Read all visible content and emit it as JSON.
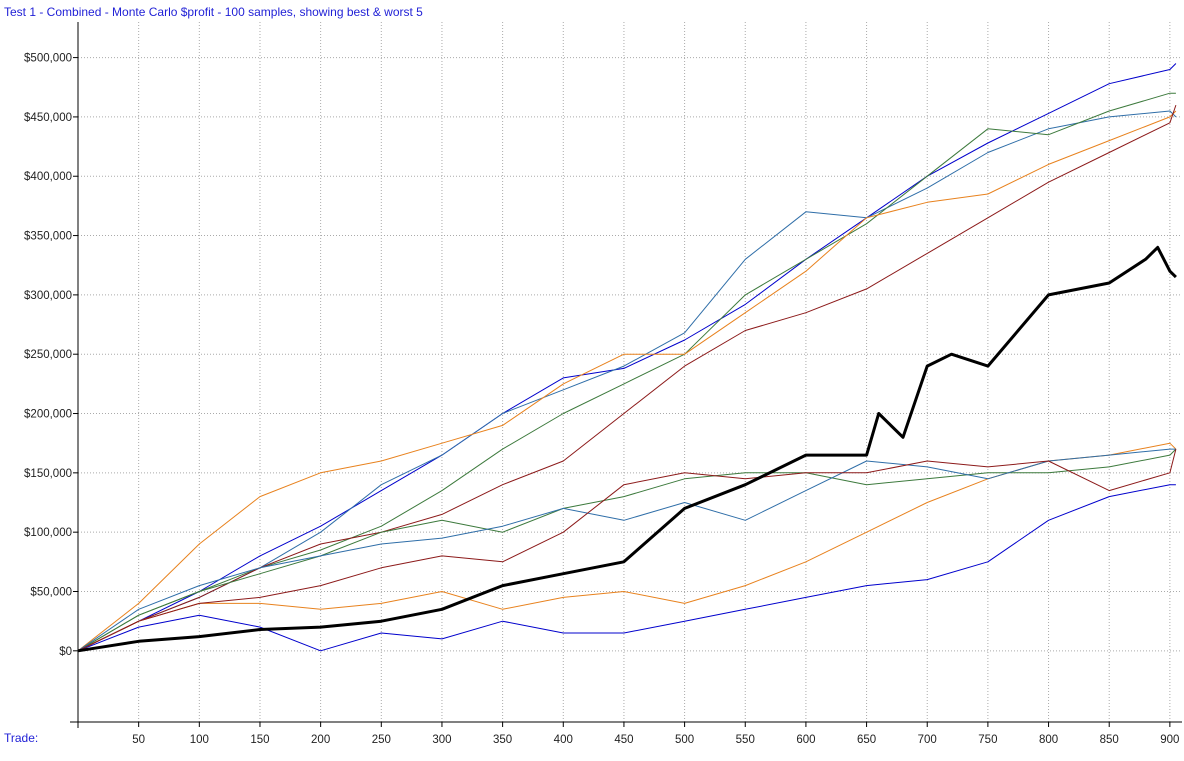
{
  "chart_data": {
    "type": "line",
    "title": "Test 1 - Combined - Monte Carlo $profit - 100 samples, showing best & worst 5",
    "xlabel": "Trade:",
    "ylabel": "",
    "xlim": [
      0,
      910
    ],
    "ylim": [
      -60000,
      530000
    ],
    "x_ticks": [
      50,
      100,
      150,
      200,
      250,
      300,
      350,
      400,
      450,
      500,
      550,
      600,
      650,
      700,
      750,
      800,
      850,
      900
    ],
    "x_tick_labels": [
      "50",
      "100",
      "150",
      "200",
      "250",
      "300",
      "350",
      "400",
      "450",
      "500",
      "550",
      "600",
      "650",
      "700",
      "750",
      "800",
      "850",
      "900"
    ],
    "y_ticks": [
      0,
      50000,
      100000,
      150000,
      200000,
      250000,
      300000,
      350000,
      400000,
      450000,
      500000
    ],
    "y_tick_labels": [
      "$0",
      "$50,000",
      "$100,000",
      "$150,000",
      "$200,000",
      "$250,000",
      "$300,000",
      "$350,000",
      "$400,000",
      "$450,000",
      "$500,000"
    ],
    "grid": true,
    "series": [
      {
        "color": "#0000cc",
        "width": 1,
        "x": [
          0,
          50,
          100,
          150,
          200,
          250,
          300,
          350,
          400,
          450,
          500,
          550,
          600,
          650,
          700,
          750,
          800,
          850,
          900,
          905
        ],
        "values": [
          0,
          25000,
          50000,
          80000,
          105000,
          135000,
          165000,
          200000,
          230000,
          238000,
          262000,
          292000,
          330000,
          365000,
          400000,
          428000,
          453000,
          478000,
          490000,
          495000
        ]
      },
      {
        "color": "#2f6ea8",
        "width": 1,
        "x": [
          0,
          50,
          100,
          150,
          200,
          250,
          300,
          350,
          400,
          450,
          500,
          550,
          600,
          650,
          700,
          750,
          800,
          850,
          900,
          905
        ],
        "values": [
          0,
          25000,
          45000,
          70000,
          100000,
          140000,
          165000,
          200000,
          220000,
          240000,
          268000,
          330000,
          370000,
          365000,
          390000,
          420000,
          440000,
          450000,
          455000,
          450000
        ]
      },
      {
        "color": "#3d7a3d",
        "width": 1,
        "x": [
          0,
          50,
          100,
          150,
          200,
          250,
          300,
          350,
          400,
          450,
          500,
          550,
          600,
          650,
          700,
          750,
          800,
          850,
          900,
          905
        ],
        "values": [
          0,
          30000,
          50000,
          70000,
          85000,
          105000,
          135000,
          170000,
          200000,
          225000,
          250000,
          300000,
          330000,
          360000,
          400000,
          440000,
          435000,
          455000,
          470000,
          470000
        ]
      },
      {
        "color": "#e8821e",
        "width": 1,
        "x": [
          0,
          50,
          100,
          150,
          200,
          250,
          300,
          350,
          400,
          450,
          500,
          550,
          600,
          650,
          700,
          750,
          800,
          850,
          900,
          905
        ],
        "values": [
          0,
          40000,
          90000,
          130000,
          150000,
          160000,
          175000,
          190000,
          225000,
          250000,
          250000,
          285000,
          320000,
          365000,
          378000,
          385000,
          410000,
          430000,
          450000,
          455000
        ]
      },
      {
        "color": "#8c1a1a",
        "width": 1,
        "x": [
          0,
          50,
          100,
          150,
          200,
          250,
          300,
          350,
          400,
          450,
          500,
          550,
          600,
          650,
          700,
          750,
          800,
          850,
          900,
          905
        ],
        "values": [
          0,
          25000,
          45000,
          70000,
          90000,
          100000,
          115000,
          140000,
          160000,
          200000,
          240000,
          270000,
          285000,
          305000,
          335000,
          365000,
          395000,
          420000,
          445000,
          460000
        ]
      },
      {
        "color": "#0000cc",
        "width": 1,
        "x": [
          0,
          50,
          100,
          150,
          200,
          250,
          300,
          350,
          400,
          450,
          500,
          550,
          600,
          650,
          700,
          750,
          800,
          850,
          900,
          905
        ],
        "values": [
          0,
          20000,
          30000,
          20000,
          0,
          15000,
          10000,
          25000,
          15000,
          15000,
          25000,
          35000,
          45000,
          55000,
          60000,
          75000,
          110000,
          130000,
          140000,
          140000
        ]
      },
      {
        "color": "#e8821e",
        "width": 1,
        "x": [
          0,
          50,
          100,
          150,
          200,
          250,
          300,
          350,
          400,
          450,
          500,
          550,
          600,
          650,
          700,
          750,
          800,
          850,
          900,
          905
        ],
        "values": [
          0,
          25000,
          40000,
          40000,
          35000,
          40000,
          50000,
          35000,
          45000,
          50000,
          40000,
          55000,
          75000,
          100000,
          125000,
          145000,
          160000,
          165000,
          175000,
          170000
        ]
      },
      {
        "color": "#3d7a3d",
        "width": 1,
        "x": [
          0,
          50,
          100,
          150,
          200,
          250,
          300,
          350,
          400,
          450,
          500,
          550,
          600,
          650,
          700,
          750,
          800,
          850,
          900,
          905
        ],
        "values": [
          0,
          30000,
          50000,
          65000,
          80000,
          100000,
          110000,
          100000,
          120000,
          130000,
          145000,
          150000,
          150000,
          140000,
          145000,
          150000,
          150000,
          155000,
          165000,
          170000
        ]
      },
      {
        "color": "#2f6ea8",
        "width": 1,
        "x": [
          0,
          50,
          100,
          150,
          200,
          250,
          300,
          350,
          400,
          450,
          500,
          550,
          600,
          650,
          700,
          750,
          800,
          850,
          900,
          905
        ],
        "values": [
          0,
          35000,
          55000,
          70000,
          80000,
          90000,
          95000,
          105000,
          120000,
          110000,
          125000,
          110000,
          135000,
          160000,
          155000,
          145000,
          160000,
          165000,
          170000,
          170000
        ]
      },
      {
        "color": "#8c1a1a",
        "width": 1,
        "x": [
          0,
          50,
          100,
          150,
          200,
          250,
          300,
          350,
          400,
          450,
          500,
          550,
          600,
          650,
          700,
          750,
          800,
          850,
          900,
          905
        ],
        "values": [
          0,
          25000,
          40000,
          45000,
          55000,
          70000,
          80000,
          75000,
          100000,
          140000,
          150000,
          145000,
          150000,
          150000,
          160000,
          155000,
          160000,
          135000,
          150000,
          170000
        ]
      },
      {
        "color": "#000000",
        "width": 3,
        "x": [
          0,
          50,
          100,
          150,
          200,
          250,
          300,
          350,
          400,
          450,
          500,
          550,
          600,
          650,
          660,
          680,
          700,
          720,
          750,
          800,
          850,
          880,
          890,
          900,
          905
        ],
        "values": [
          0,
          8000,
          12000,
          18000,
          20000,
          25000,
          35000,
          55000,
          65000,
          75000,
          120000,
          140000,
          165000,
          165000,
          200000,
          180000,
          240000,
          250000,
          240000,
          300000,
          310000,
          330000,
          340000,
          320000,
          315000
        ]
      }
    ]
  }
}
